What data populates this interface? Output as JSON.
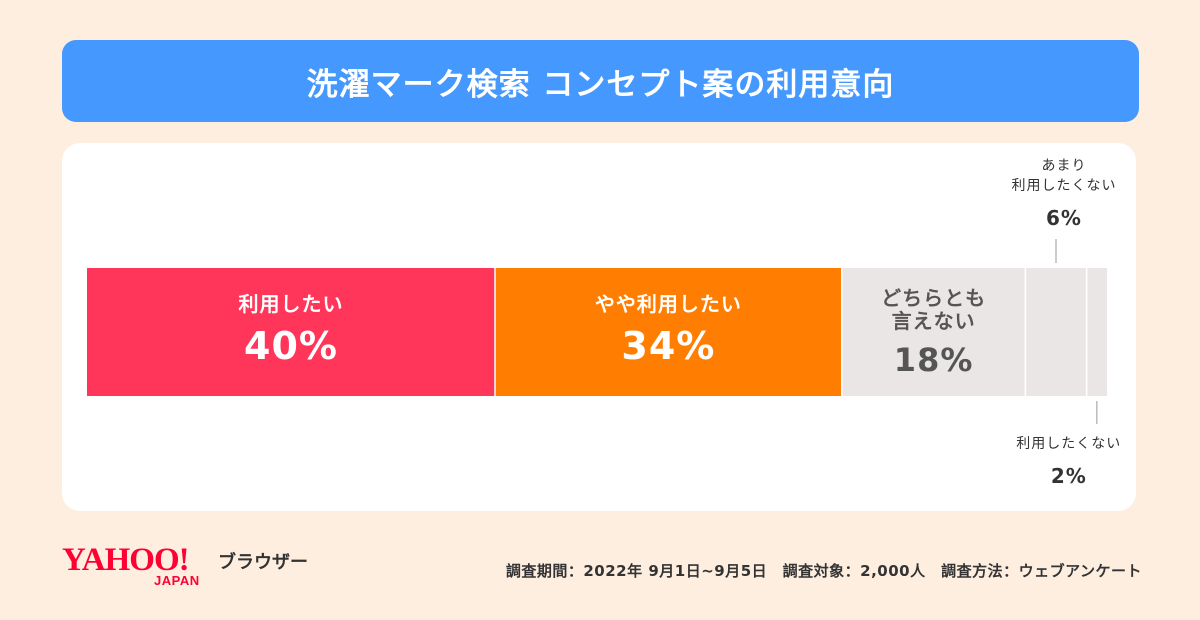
{
  "title": "洗濯マーク検索 コンセプト案の利用意向",
  "chart_data": {
    "type": "bar",
    "orientation": "horizontal-stacked-100",
    "title": "洗濯マーク検索 コンセプト案の利用意向",
    "series": [
      {
        "name": "利用したい",
        "label_lines": [
          "利用したい"
        ],
        "value": 40,
        "value_label": "40%",
        "color": "#ff3559",
        "text_color": "#ffffff",
        "label_position": "inside"
      },
      {
        "name": "やや利用したい",
        "label_lines": [
          "やや利用したい"
        ],
        "value": 34,
        "value_label": "34%",
        "color": "#ff7d00",
        "text_color": "#ffffff",
        "label_position": "inside"
      },
      {
        "name": "どちらとも言えない",
        "label_lines": [
          "どちらとも",
          "言えない"
        ],
        "value": 18,
        "value_label": "18%",
        "color": "#ebe6e6",
        "text_color": "#555555",
        "label_position": "inside"
      },
      {
        "name": "あまり利用したくない",
        "label_lines": [
          "あまり",
          "利用したくない"
        ],
        "value": 6,
        "value_label": "6%",
        "color": "#ebe6e6",
        "text_color": "#333333",
        "label_position": "above"
      },
      {
        "name": "利用したくない",
        "label_lines": [
          "利用したくない"
        ],
        "value": 2,
        "value_label": "2%",
        "color": "#ebe6e6",
        "text_color": "#333333",
        "label_position": "below"
      }
    ]
  },
  "footer": {
    "survey_note": "調査期間：2022年 9月1日~9月5日　調査対象：2,000人　調査方法：ウェブアンケート"
  },
  "logo": {
    "brand": "YAHOO!",
    "sub": "JAPAN",
    "product": "ブラウザー",
    "color": "#ff0033"
  }
}
